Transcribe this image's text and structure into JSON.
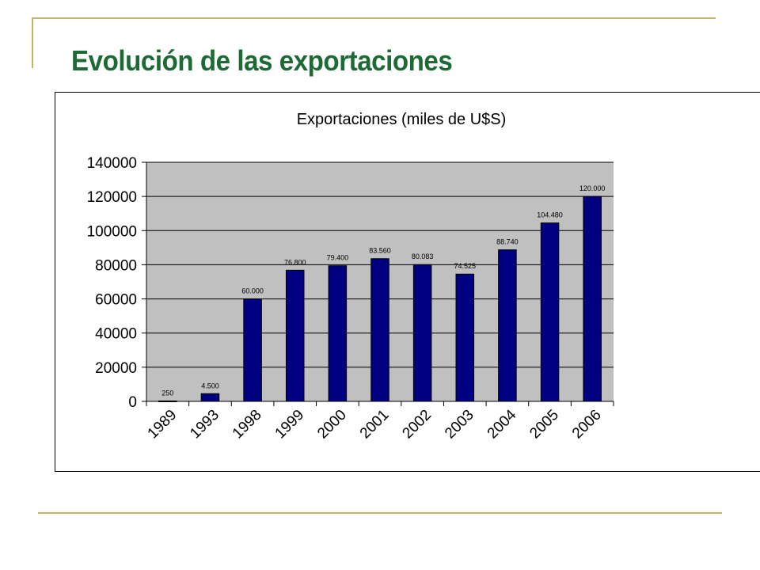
{
  "slide": {
    "title": "Evolución de las exportaciones"
  },
  "colors": {
    "title": "#1d6b34",
    "decoration": "#c8b560",
    "plot_background": "#c0c0c0",
    "bar_fill": "#000080"
  },
  "chart_data": {
    "type": "bar",
    "title": "Exportaciones (miles de U$S)",
    "xlabel": "",
    "ylabel": "",
    "categories": [
      "1989",
      "1993",
      "1998",
      "1999",
      "2000",
      "2001",
      "2002",
      "2003",
      "2004",
      "2005",
      "2006"
    ],
    "values": [
      250,
      4500,
      60000,
      76800,
      79400,
      83560,
      80083,
      74525,
      88740,
      104480,
      120000
    ],
    "data_labels": [
      "250",
      "4.500",
      "60.000",
      "76.800",
      "79.400",
      "83.560",
      "80.083",
      "74.525",
      "88.740",
      "104.480",
      "120.000"
    ],
    "ylim": [
      0,
      140000
    ],
    "yticks": [
      "0",
      "20000",
      "40000",
      "60000",
      "80000",
      "100000",
      "120000",
      "140000"
    ],
    "grid": true,
    "legend": "none"
  }
}
